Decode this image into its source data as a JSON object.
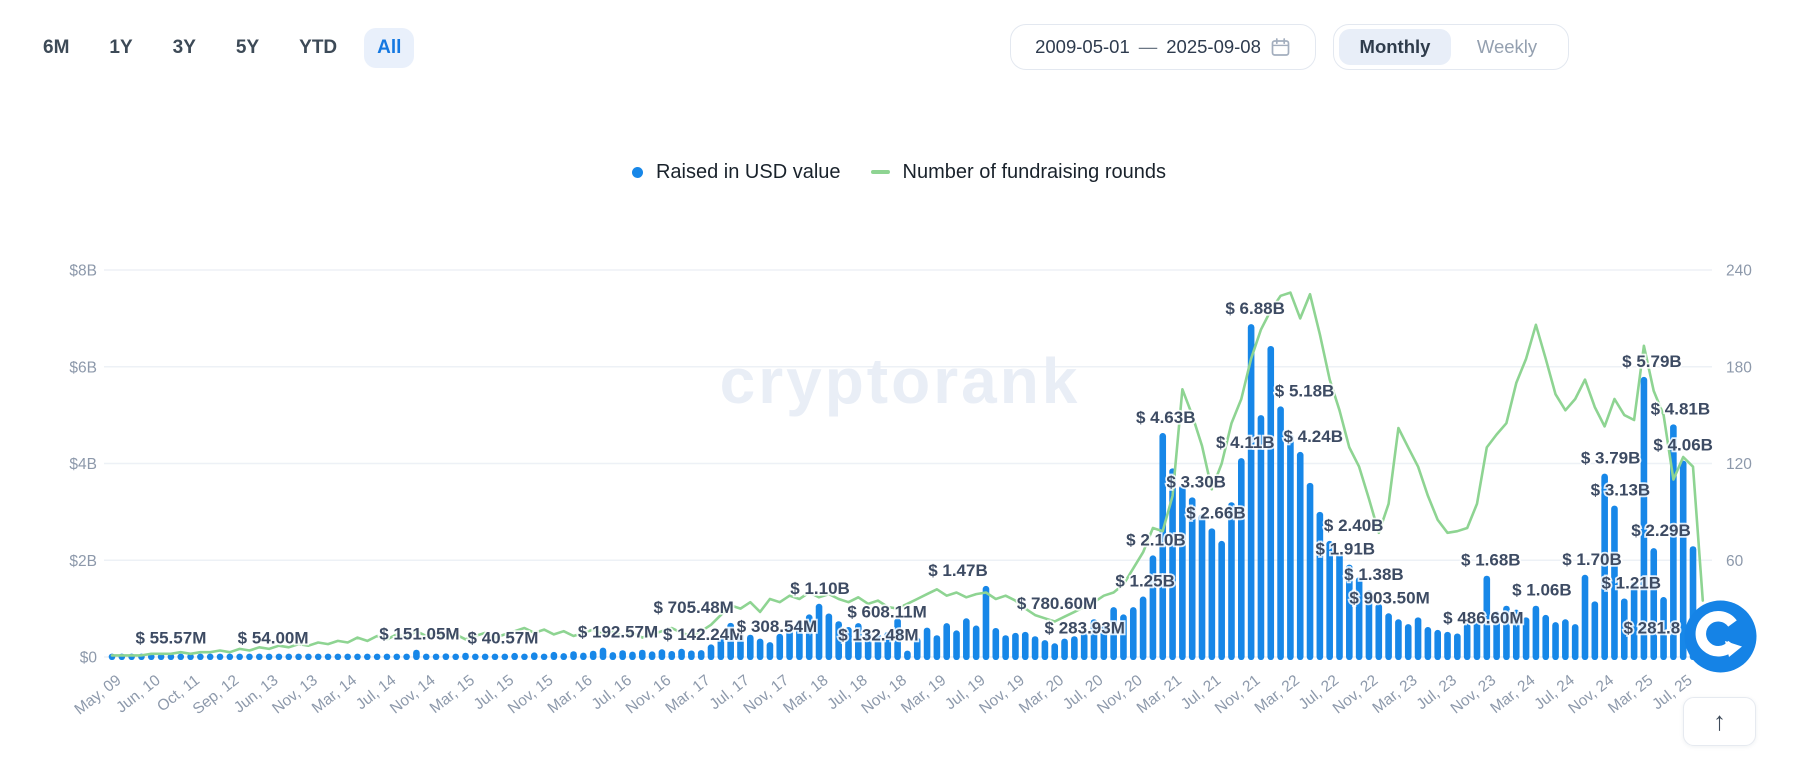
{
  "toolbar": {
    "ranges": [
      "6M",
      "1Y",
      "3Y",
      "5Y",
      "YTD",
      "All"
    ],
    "active_range": "All",
    "date_from": "2009-05-01",
    "date_separator": "—",
    "date_to": "2025-09-08",
    "granularity": [
      "Monthly",
      "Weekly"
    ],
    "active_granularity": "Monthly"
  },
  "legend": [
    {
      "label": "Raised in USD value",
      "marker": "dot",
      "color": "#1787e8"
    },
    {
      "label": "Number of fundraising rounds",
      "marker": "line",
      "color": "#8ed492"
    }
  ],
  "watermark": "cryptorank",
  "scroll_top_glyph": "↑",
  "colors": {
    "bar": "#1787e8",
    "line": "#8ed492",
    "grid": "#edf1f6",
    "axis_text": "#8d99ab",
    "bar_label": "#3d4b63",
    "watermark": "#e9eef6",
    "logo": "#1583e6"
  },
  "chart_data": {
    "type": "bar+line",
    "left_axis": {
      "ticks_bottom_up": [
        "$0",
        "$2B",
        "$4B",
        "$6B",
        "$8B"
      ],
      "max_musd": 8000
    },
    "right_axis": {
      "ticks_bottom_up": [
        "",
        "60",
        "120",
        "180",
        "240"
      ],
      "max_rounds": 240
    },
    "x_tick_every": 4,
    "x_tick_labels": [
      "May, 09",
      "Jun, 10",
      "Oct, 11",
      "Sep, 12",
      "Jun, 13",
      "Nov, 13",
      "Mar, 14",
      "Jul, 14",
      "Nov, 14",
      "Mar, 15",
      "Jul, 15",
      "Nov, 15",
      "Mar, 16",
      "Jul, 16",
      "Nov, 16",
      "Mar, 17",
      "Jul, 17",
      "Nov, 17",
      "Mar, 18",
      "Jul, 18",
      "Nov, 18",
      "Mar, 19",
      "Jul, 19",
      "Nov, 19",
      "Mar, 20",
      "Jul, 20",
      "Nov, 20",
      "Mar, 21",
      "Jul, 21",
      "Nov, 21",
      "Mar, 22",
      "Jul, 22",
      "Nov, 22",
      "Mar, 23",
      "Jul, 23",
      "Nov, 23",
      "Mar, 24",
      "Jul, 24",
      "Nov, 24",
      "Mar, 25",
      "Jul, 25"
    ],
    "series": [
      {
        "name": "Raised in USD value",
        "unit": "million USD",
        "values": [
          2,
          1,
          3,
          1,
          4,
          10,
          55.57,
          8,
          5,
          12,
          7,
          15,
          9,
          18,
          11,
          22,
          54,
          14,
          25,
          16,
          28,
          18,
          32,
          20,
          36,
          24,
          45,
          30,
          55,
          38,
          70,
          151.05,
          60,
          42,
          75,
          50,
          88,
          60,
          45,
          40.57,
          65,
          85,
          58,
          95,
          70,
          105,
          80,
          120,
          90,
          130,
          192.57,
          100,
          140,
          110,
          150,
          115,
          160,
          125,
          170,
          135,
          142.24,
          260,
          420,
          705.48,
          560,
          460,
          380,
          308.54,
          480,
          620,
          760,
          880,
          1100,
          900,
          740,
          620,
          700,
          540,
          480,
          520,
          800,
          132.48,
          400,
          608.11,
          450,
          700,
          550,
          800,
          650,
          1470,
          600,
          450,
          500,
          520,
          430,
          350,
          283.93,
          380,
          430,
          520,
          780.6,
          650,
          1030,
          880,
          1030,
          1250,
          2100,
          4630,
          3900,
          3550,
          3300,
          2950,
          2660,
          2400,
          3200,
          4110,
          6880,
          5000,
          6430,
          5180,
          4600,
          4240,
          3600,
          3000,
          2400,
          2150,
          1910,
          1650,
          1380,
          1100,
          903.5,
          780,
          680,
          820,
          620,
          560,
          520,
          486.6,
          700,
          820,
          1680,
          950,
          1060,
          980,
          820,
          1060,
          870,
          720,
          780,
          680,
          1700,
          1150,
          3790,
          3130,
          1210,
          1550,
          5790,
          2250,
          1240,
          4810,
          4060,
          2290,
          281.8
        ]
      },
      {
        "name": "Number of fundraising rounds",
        "unit": "rounds",
        "values": [
          1,
          1,
          1,
          1,
          2,
          2,
          2,
          3,
          2,
          3,
          3,
          4,
          3,
          5,
          4,
          6,
          5,
          7,
          6,
          8,
          7,
          9,
          8,
          10,
          9,
          12,
          10,
          13,
          11,
          14,
          12,
          16,
          13,
          15,
          12,
          14,
          11,
          13,
          15,
          12,
          14,
          16,
          18,
          15,
          17,
          14,
          16,
          13,
          15,
          17,
          14,
          16,
          13,
          15,
          12,
          14,
          16,
          18,
          15,
          13,
          16,
          20,
          26,
          32,
          30,
          34,
          28,
          36,
          34,
          38,
          36,
          40,
          37,
          39,
          36,
          34,
          37,
          33,
          35,
          31,
          30,
          33,
          36,
          39,
          42,
          38,
          40,
          37,
          39,
          40,
          36,
          38,
          35,
          30,
          26,
          24,
          22,
          25,
          28,
          31,
          34,
          38,
          40,
          45,
          55,
          65,
          80,
          78,
          100,
          166,
          150,
          131,
          104,
          120,
          145,
          160,
          185,
          203,
          215,
          224,
          226,
          210,
          225,
          200,
          172,
          153,
          130,
          118,
          98,
          77,
          95,
          142,
          130,
          118,
          100,
          85,
          77,
          78,
          80,
          95,
          130,
          138,
          145,
          170,
          185,
          206,
          185,
          163,
          153,
          160,
          172,
          155,
          143,
          160,
          150,
          147,
          193,
          165,
          150,
          110,
          124,
          118,
          35
        ]
      }
    ],
    "bar_labels": [
      {
        "index": 6,
        "text": "$ 55.57M",
        "dx": 0
      },
      {
        "index": 16,
        "text": "$ 54.00M",
        "dx": 4
      },
      {
        "index": 31,
        "text": "$ 151.05M",
        "dx": 3
      },
      {
        "index": 39,
        "text": "$ 40.57M",
        "dx": 8
      },
      {
        "index": 50,
        "text": "$ 192.57M",
        "dx": 15
      },
      {
        "index": 60,
        "text": "$ 142.24M",
        "dx": 2
      },
      {
        "index": 63,
        "text": "$ 705.48M",
        "dx": -37
      },
      {
        "index": 67,
        "text": "$ 308.54M",
        "dx": 7
      },
      {
        "index": 72,
        "text": "$ 1.10B",
        "dx": 1
      },
      {
        "index": 81,
        "text": "$ 132.48M",
        "dx": -29
      },
      {
        "index": 83,
        "text": "$ 608.11M",
        "dx": -40
      },
      {
        "index": 89,
        "text": "$ 1.47B",
        "dx": -28
      },
      {
        "index": 96,
        "text": "$ 283.93M",
        "dx": 30
      },
      {
        "index": 100,
        "text": "$ 780.60M",
        "dx": -37
      },
      {
        "index": 105,
        "text": "$ 1.25B",
        "dx": 2
      },
      {
        "index": 106,
        "text": "$ 2.10B",
        "dx": 3
      },
      {
        "index": 107,
        "text": "$ 4.63B",
        "dx": 3
      },
      {
        "index": 110,
        "text": "$ 3.30B",
        "dx": 4
      },
      {
        "index": 112,
        "text": "$ 2.66B",
        "dx": 4
      },
      {
        "index": 115,
        "text": "$ 4.11B",
        "dx": 4
      },
      {
        "index": 116,
        "text": "$ 6.88B",
        "dx": 4
      },
      {
        "index": 119,
        "text": "$ 5.18B",
        "dx": 24
      },
      {
        "index": 121,
        "text": "$ 4.24B",
        "dx": 13
      },
      {
        "index": 124,
        "text": "$ 2.40B",
        "dx": 24
      },
      {
        "index": 126,
        "text": "$ 1.91B",
        "dx": -4
      },
      {
        "index": 128,
        "text": "$ 1.38B",
        "dx": 5
      },
      {
        "index": 130,
        "text": "$ 903.50M",
        "dx": 1
      },
      {
        "index": 137,
        "text": "$ 486.60M",
        "dx": 26
      },
      {
        "index": 140,
        "text": "$ 1.68B",
        "dx": 4
      },
      {
        "index": 145,
        "text": "$ 1.06B",
        "dx": 6
      },
      {
        "index": 150,
        "text": "$ 1.70B",
        "dx": 7
      },
      {
        "index": 152,
        "text": "$ 3.79B",
        "dx": 6
      },
      {
        "index": 153,
        "text": "$ 3.13B",
        "dx": 6
      },
      {
        "index": 154,
        "text": "$ 1.21B",
        "dx": 7
      },
      {
        "index": 156,
        "text": "$ 5.79B",
        "dx": 8
      },
      {
        "index": 159,
        "text": "$ 4.81B",
        "dx": 7
      },
      {
        "index": 160,
        "text": "$ 4.06B",
        "dx": 0
      },
      {
        "index": 161,
        "text": "$ 2.29B",
        "dx": -32
      },
      {
        "index": 162,
        "text": "$ 281.8",
        "dx": -51
      }
    ]
  }
}
